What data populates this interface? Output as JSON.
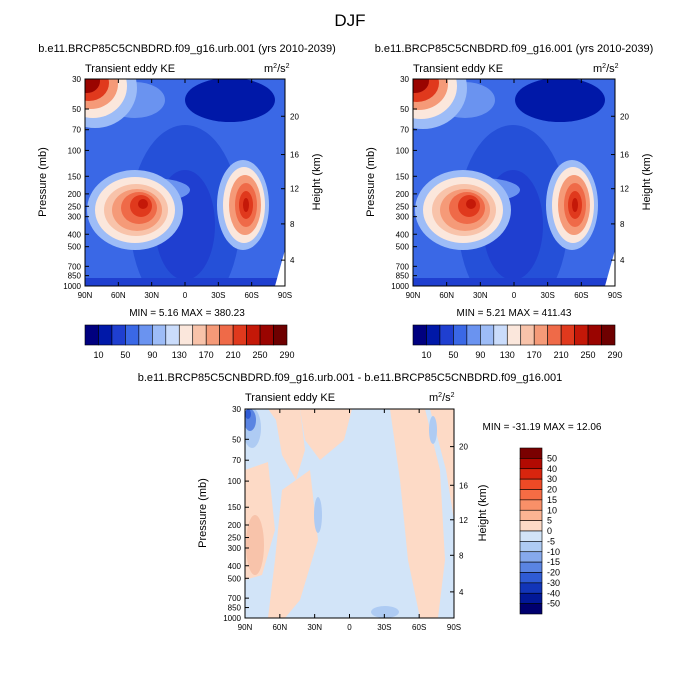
{
  "figure": {
    "title": "DJF"
  },
  "chart_data": [
    {
      "type": "heatmap",
      "title": "b.e11.BRCP85C5CNBDRD.f09_g16.urb.001 (yrs 2010-2039)",
      "subtitle_left": "Transient eddy KE",
      "units": "m²/s²",
      "units_base": "m",
      "units_sup1": "2",
      "units_mid": "/s",
      "units_sup2": "2",
      "ylabel": "Pressure (mb)",
      "ylabel_right": "Height (km)",
      "x_ticks": [
        "90N",
        "60N",
        "30N",
        "0",
        "30S",
        "60S",
        "90S"
      ],
      "y_ticks": [
        "30",
        "50",
        "70",
        "100",
        "150",
        "200",
        "250",
        "300",
        "400",
        "500",
        "700",
        "850",
        "1000"
      ],
      "y_ticks_right": [
        "20",
        "16",
        "12",
        "8",
        "4"
      ],
      "stats": "MIN =   5.16  MAX = 380.23",
      "min": 5.16,
      "max": 380.23,
      "colorbar": {
        "labels": [
          "10",
          "50",
          "90",
          "130",
          "170",
          "210",
          "250",
          "290"
        ],
        "colors": [
          "#00007f",
          "#0018a8",
          "#1f3fd0",
          "#3a68e6",
          "#6a93f0",
          "#9dbcf7",
          "#cadcfb",
          "#fbe7dc",
          "#f8c3aa",
          "#f59a78",
          "#ef6a48",
          "#e0391d",
          "#c41808",
          "#9a0400",
          "#6e0000"
        ]
      }
    },
    {
      "type": "heatmap",
      "title": "b.e11.BRCP85C5CNBDRD.f09_g16.001 (yrs 2010-2039)",
      "subtitle_left": "Transient eddy KE",
      "units": "m²/s²",
      "units_base": "m",
      "units_sup1": "2",
      "units_mid": "/s",
      "units_sup2": "2",
      "ylabel": "Pressure (mb)",
      "ylabel_right": "Height (km)",
      "x_ticks": [
        "90N",
        "60N",
        "30N",
        "0",
        "30S",
        "60S",
        "90S"
      ],
      "y_ticks": [
        "30",
        "50",
        "70",
        "100",
        "150",
        "200",
        "250",
        "300",
        "400",
        "500",
        "700",
        "850",
        "1000"
      ],
      "y_ticks_right": [
        "20",
        "16",
        "12",
        "8",
        "4"
      ],
      "stats": "MIN =   5.21  MAX = 411.43",
      "min": 5.21,
      "max": 411.43,
      "colorbar": {
        "labels": [
          "10",
          "50",
          "90",
          "130",
          "170",
          "210",
          "250",
          "290"
        ],
        "colors": [
          "#00007f",
          "#0018a8",
          "#1f3fd0",
          "#3a68e6",
          "#6a93f0",
          "#9dbcf7",
          "#cadcfb",
          "#fbe7dc",
          "#f8c3aa",
          "#f59a78",
          "#ef6a48",
          "#e0391d",
          "#c41808",
          "#9a0400",
          "#6e0000"
        ]
      }
    },
    {
      "type": "heatmap",
      "title": "b.e11.BRCP85C5CNBDRD.f09_g16.urb.001 - b.e11.BRCP85C5CNBDRD.f09_g16.001",
      "subtitle_left": "Transient eddy KE",
      "units": "m²/s²",
      "units_base": "m",
      "units_sup1": "2",
      "units_mid": "/s",
      "units_sup2": "2",
      "ylabel": "Pressure (mb)",
      "ylabel_right": "Height (km)",
      "x_ticks": [
        "90N",
        "60N",
        "30N",
        "0",
        "30S",
        "60S",
        "90S"
      ],
      "y_ticks": [
        "30",
        "50",
        "70",
        "100",
        "150",
        "200",
        "250",
        "300",
        "400",
        "500",
        "700",
        "850",
        "1000"
      ],
      "y_ticks_right": [
        "20",
        "16",
        "12",
        "8",
        "4"
      ],
      "stats": "MIN = -31.19  MAX =  12.06",
      "min": -31.19,
      "max": 12.06,
      "colorbar": {
        "labels": [
          "50",
          "40",
          "30",
          "20",
          "15",
          "10",
          "5",
          "0",
          "-5",
          "-10",
          "-15",
          "-20",
          "-30",
          "-40",
          "-50"
        ],
        "colors": [
          "#7a0000",
          "#b20a02",
          "#d8250e",
          "#ee4a26",
          "#f66c44",
          "#f99068",
          "#fbb493",
          "#fddac6",
          "#d2e4f8",
          "#aecbf3",
          "#86a9ec",
          "#5a84e2",
          "#2f5bd4",
          "#1235b8",
          "#021897",
          "#00006e"
        ]
      }
    }
  ]
}
